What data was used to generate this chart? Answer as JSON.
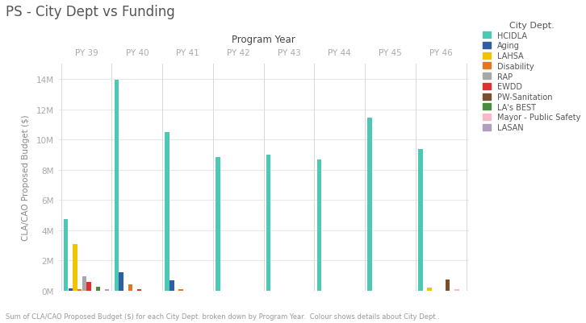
{
  "title": "PS - City Dept vs Funding",
  "xlabel": "Program Year",
  "ylabel": "CLA/CAO Proposed Budget ($)",
  "footnote": "Sum of CLA/CAO Proposed Budget ($) for each City Dept. broken down by Program Year.  Colour shows details about City Dept..",
  "legend_title": "City Dept.",
  "program_years": [
    "PY 39",
    "PY 40",
    "PY 41",
    "PY 42",
    "PY 43",
    "PY 44",
    "PY 45",
    "PY 46"
  ],
  "departments": [
    "HCIDLA",
    "Aging",
    "LAHSA",
    "Disability",
    "RAP",
    "EWDD",
    "PW-Sanitation",
    "LA's BEST",
    "Mayor - Public Safety",
    "LASAN"
  ],
  "colors": {
    "HCIDLA": "#4dc8b4",
    "Aging": "#2e5fa3",
    "LAHSA": "#f0c400",
    "Disability": "#e07820",
    "RAP": "#a8a8a8",
    "EWDD": "#e03030",
    "PW-Sanitation": "#7a4f2e",
    "LA's BEST": "#4a8c3c",
    "Mayor - Public Safety": "#f9b8c8",
    "LASAN": "#b09ec0"
  },
  "data": {
    "HCIDLA": [
      4750000,
      13950000,
      10500000,
      8850000,
      9000000,
      8700000,
      11450000,
      9350000
    ],
    "Aging": [
      150000,
      1200000,
      700000,
      0,
      0,
      0,
      0,
      0
    ],
    "LAHSA": [
      3100000,
      0,
      0,
      0,
      0,
      0,
      0,
      180000
    ],
    "Disability": [
      100000,
      420000,
      120000,
      0,
      0,
      0,
      0,
      0
    ],
    "RAP": [
      950000,
      0,
      0,
      0,
      0,
      0,
      0,
      0
    ],
    "EWDD": [
      560000,
      120000,
      0,
      0,
      0,
      0,
      0,
      0
    ],
    "PW-Sanitation": [
      0,
      0,
      0,
      0,
      0,
      0,
      0,
      750000
    ],
    "LA's BEST": [
      280000,
      0,
      0,
      0,
      0,
      0,
      0,
      0
    ],
    "Mayor - Public Safety": [
      0,
      0,
      0,
      0,
      0,
      0,
      0,
      120000
    ],
    "LASAN": [
      100000,
      0,
      0,
      0,
      0,
      0,
      0,
      0
    ]
  },
  "ylim": [
    0,
    15000000
  ],
  "ytick_values": [
    0,
    2000000,
    4000000,
    6000000,
    8000000,
    10000000,
    12000000,
    14000000
  ],
  "title_color": "#555555",
  "background_color": "#ffffff",
  "grid_color": "#e8e8e8",
  "axis_label_color": "#888888",
  "tick_label_color": "#aaaaaa",
  "legend_text_color": "#555555"
}
